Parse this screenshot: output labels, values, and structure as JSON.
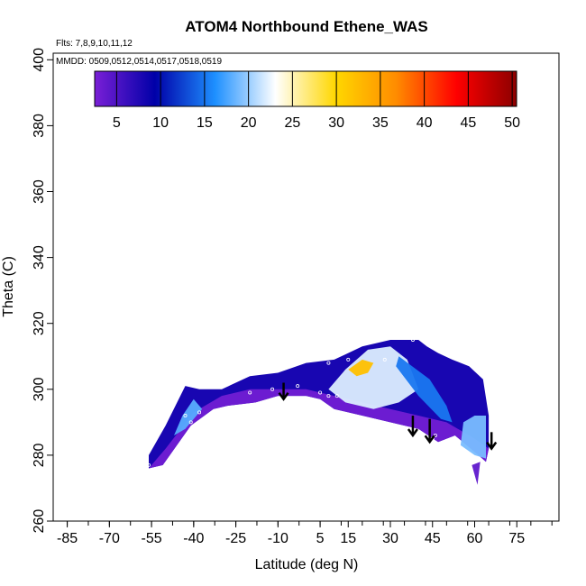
{
  "chart_data": {
    "type": "heatmap",
    "title": "ATOM4 Northbound Ethene_WAS",
    "subtitle_flights": "Flts: 7,8,9,10,11,12",
    "subtitle_dates": "MMDD: 0509,0512,0514,0517,0518,0519",
    "xlabel": "Latitude (deg N)",
    "ylabel": "Theta (C)",
    "xlim": [
      -90,
      90
    ],
    "ylim": [
      260,
      402
    ],
    "x_ticks": [
      "-85",
      "-70",
      "-55",
      "-40",
      "-25",
      "-10",
      "5",
      "15",
      "30",
      "45",
      "60",
      "75"
    ],
    "x_tick_values": [
      -85,
      -70,
      -55,
      -40,
      -25,
      -10,
      5,
      15,
      30,
      45,
      60,
      75
    ],
    "y_ticks": [
      "260",
      "280",
      "300",
      "320",
      "340",
      "360",
      "380",
      "400"
    ],
    "y_tick_values": [
      260,
      280,
      300,
      320,
      340,
      360,
      380,
      400
    ],
    "colorbar": {
      "min": 2.5,
      "max": 50.5,
      "ticks": [
        "5",
        "10",
        "15",
        "20",
        "25",
        "30",
        "35",
        "40",
        "45",
        "50"
      ],
      "tick_values": [
        5,
        10,
        15,
        20,
        25,
        30,
        35,
        40,
        45,
        50
      ],
      "colors": [
        "#7a1fd6",
        "#0000a8",
        "#1e90ff",
        "#ffffff",
        "#ffd700",
        "#ff8c00",
        "#ff0000",
        "#8b0000"
      ]
    },
    "field_outline": [
      [
        -56,
        276
      ],
      [
        -51,
        277
      ],
      [
        -41,
        289
      ],
      [
        -33,
        294
      ],
      [
        -28,
        295
      ],
      [
        -18,
        296
      ],
      [
        -10,
        298
      ],
      [
        0,
        298
      ],
      [
        5,
        297
      ],
      [
        10,
        294
      ],
      [
        20,
        292
      ],
      [
        30,
        290
      ],
      [
        40,
        288
      ],
      [
        47,
        284
      ],
      [
        53,
        286
      ],
      [
        60,
        281
      ],
      [
        64,
        278
      ],
      [
        65,
        282
      ],
      [
        65,
        292
      ],
      [
        63,
        303
      ],
      [
        58,
        307
      ],
      [
        52,
        309
      ],
      [
        47,
        311
      ],
      [
        43,
        313
      ],
      [
        40,
        315
      ],
      [
        30,
        315
      ],
      [
        20,
        313
      ],
      [
        10,
        309
      ],
      [
        0,
        308
      ],
      [
        -10,
        305
      ],
      [
        -20,
        304
      ],
      [
        -30,
        300
      ],
      [
        -38,
        300
      ],
      [
        -43,
        301
      ],
      [
        -50,
        289
      ],
      [
        -56,
        280
      ]
    ],
    "features": [
      {
        "name": "low-mixing-ratio-band",
        "value": 3,
        "outline": [
          [
            -56,
            276
          ],
          [
            -51,
            277
          ],
          [
            -41,
            289
          ],
          [
            -33,
            294
          ],
          [
            -28,
            295
          ],
          [
            -18,
            296
          ],
          [
            -10,
            298
          ],
          [
            0,
            298
          ],
          [
            5,
            297
          ],
          [
            10,
            294
          ],
          [
            20,
            292
          ],
          [
            30,
            290
          ],
          [
            40,
            288
          ],
          [
            47,
            284
          ],
          [
            53,
            286
          ],
          [
            60,
            281
          ],
          [
            64,
            278
          ],
          [
            65,
            282
          ],
          [
            60,
            285
          ],
          [
            50,
            290
          ],
          [
            40,
            292
          ],
          [
            30,
            294
          ],
          [
            20,
            296
          ],
          [
            10,
            298
          ],
          [
            0,
            300
          ],
          [
            -10,
            300
          ],
          [
            -20,
            300
          ],
          [
            -30,
            298
          ],
          [
            -40,
            293
          ],
          [
            -50,
            282
          ]
        ]
      },
      {
        "name": "mid-latitude-plume",
        "value": 22,
        "outline": [
          [
            8,
            300
          ],
          [
            14,
            306
          ],
          [
            22,
            312
          ],
          [
            30,
            313
          ],
          [
            36,
            309
          ],
          [
            40,
            300
          ],
          [
            33,
            296
          ],
          [
            24,
            294
          ],
          [
            14,
            296
          ]
        ]
      },
      {
        "name": "plume-core",
        "value": 32,
        "outline": [
          [
            15,
            306
          ],
          [
            20,
            309
          ],
          [
            24,
            308
          ],
          [
            22,
            305
          ],
          [
            18,
            304
          ]
        ]
      },
      {
        "name": "southern-edge-streak",
        "value": 18,
        "outline": [
          [
            -47,
            286
          ],
          [
            -44,
            292
          ],
          [
            -40,
            297
          ],
          [
            -37,
            294
          ],
          [
            -43,
            288
          ]
        ]
      },
      {
        "name": "arctic-edge",
        "value": 19,
        "outline": [
          [
            55,
            283
          ],
          [
            60,
            280
          ],
          [
            64,
            279
          ],
          [
            64,
            292
          ],
          [
            60,
            292
          ],
          [
            56,
            290
          ]
        ]
      },
      {
        "name": "arctic-tail",
        "value": 4,
        "outline": [
          [
            59,
            277
          ],
          [
            61,
            271
          ],
          [
            62,
            278
          ]
        ]
      },
      {
        "name": "northern-diagonal",
        "value": 15,
        "outline": [
          [
            33,
            310
          ],
          [
            44,
            303
          ],
          [
            50,
            295
          ],
          [
            52,
            290
          ],
          [
            48,
            291
          ],
          [
            40,
            298
          ],
          [
            32,
            307
          ]
        ]
      }
    ],
    "sample_points": [
      [
        -56,
        277
      ],
      [
        -43,
        292
      ],
      [
        -41,
        290
      ],
      [
        -38,
        293
      ],
      [
        -20,
        299
      ],
      [
        -12,
        300
      ],
      [
        -3,
        301
      ],
      [
        5,
        299
      ],
      [
        8,
        298
      ],
      [
        11,
        298
      ],
      [
        8,
        308
      ],
      [
        15,
        309
      ],
      [
        28,
        309
      ],
      [
        45,
        285
      ],
      [
        46,
        286
      ],
      [
        38,
        315
      ],
      [
        -36,
        291
      ]
    ],
    "arrows": [
      {
        "lat": -8,
        "theta_top": 302,
        "theta_bottom": 297
      },
      {
        "lat": 38,
        "theta_top": 292,
        "theta_bottom": 286
      },
      {
        "lat": 44,
        "theta_top": 291,
        "theta_bottom": 284
      },
      {
        "lat": 66,
        "theta_top": 287,
        "theta_bottom": 282
      }
    ]
  }
}
